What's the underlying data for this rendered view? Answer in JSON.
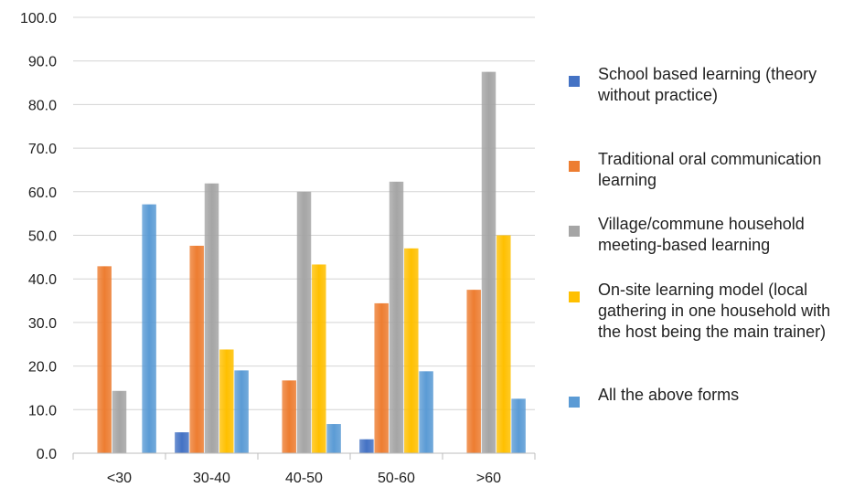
{
  "chart_data": {
    "type": "bar",
    "title": "",
    "xlabel": "",
    "ylabel": "",
    "categories": [
      "<30",
      "30-40",
      "40-50",
      "50-60",
      ">60"
    ],
    "ylim": [
      0,
      100
    ],
    "yticks": [
      "0.0",
      "10.0",
      "20.0",
      "30.0",
      "40.0",
      "50.0",
      "60.0",
      "70.0",
      "80.0",
      "90.0",
      "100.0"
    ],
    "grid": true,
    "legend_position": "right",
    "series": [
      {
        "name": "School based learning (theory without practice)",
        "color": "#4472C4",
        "values": [
          0,
          4.8,
          0,
          3.2,
          0
        ]
      },
      {
        "name": "Traditional oral communication learning",
        "color": "#ED7D31",
        "values": [
          42.9,
          47.6,
          16.7,
          34.4,
          37.5
        ]
      },
      {
        "name": "Village/commune household meeting-based learning",
        "color": "#A5A5A5",
        "values": [
          14.3,
          61.9,
          60.0,
          62.3,
          87.5
        ]
      },
      {
        "name": "On-site learning model (local gathering in one household with the host being the main trainer)",
        "color": "#FFC000",
        "values": [
          0,
          23.8,
          43.3,
          47.0,
          50.0
        ]
      },
      {
        "name": "All the above forms",
        "color": "#5B9BD5",
        "values": [
          57.1,
          19.0,
          6.7,
          18.8,
          12.5
        ]
      }
    ]
  }
}
